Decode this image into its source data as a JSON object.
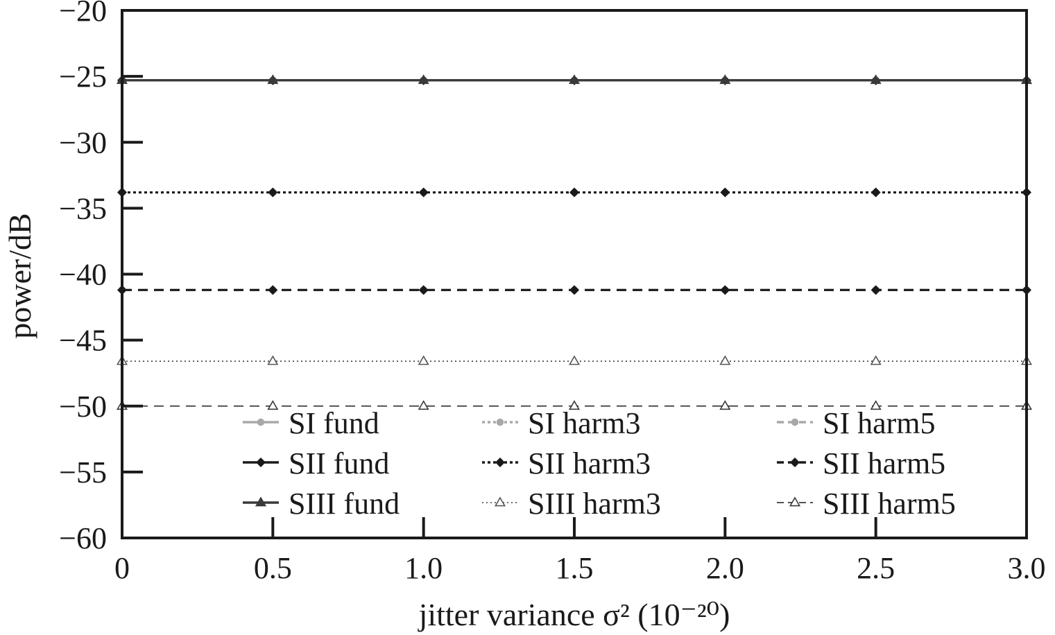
{
  "chart_data": {
    "type": "line",
    "xlabel": "jitter variance σ² (10⁻²⁰)",
    "ylabel": "power/dB",
    "xlim": [
      0,
      3.0
    ],
    "ylim": [
      -60,
      -20
    ],
    "xticks": [
      "0",
      "0.5",
      "1.0",
      "1.5",
      "2.0",
      "2.5",
      "3.0"
    ],
    "yticks": [
      "−20",
      "−25",
      "−30",
      "−35",
      "−40",
      "−45",
      "−50",
      "−55",
      "−60"
    ],
    "grid": false,
    "legend_position": "bottom",
    "x": [
      0,
      0.5,
      1.0,
      1.5,
      2.0,
      2.5,
      3.0
    ],
    "series": [
      {
        "name": "SI fund",
        "values": [
          -25.3,
          -25.3,
          -25.3,
          -25.3,
          -25.3,
          -25.3,
          -25.3
        ],
        "color": "#a8a8a8",
        "style": "solid",
        "marker": "circle"
      },
      {
        "name": "SI harm3",
        "values": [
          -33.8,
          -33.8,
          -33.8,
          -33.8,
          -33.8,
          -33.8,
          -33.8
        ],
        "color": "#a8a8a8",
        "style": "dotted",
        "marker": "circle"
      },
      {
        "name": "SI harm5",
        "values": [
          -41.2,
          -41.2,
          -41.2,
          -41.2,
          -41.2,
          -41.2,
          -41.2
        ],
        "color": "#a8a8a8",
        "style": "dashed",
        "marker": "circle"
      },
      {
        "name": "SII fund",
        "values": [
          -25.3,
          -25.3,
          -25.3,
          -25.3,
          -25.3,
          -25.3,
          -25.3
        ],
        "color": "#1a1a1a",
        "style": "solid",
        "marker": "diamond"
      },
      {
        "name": "SII harm3",
        "values": [
          -33.8,
          -33.8,
          -33.8,
          -33.8,
          -33.8,
          -33.8,
          -33.8
        ],
        "color": "#1a1a1a",
        "style": "dotted",
        "marker": "diamond"
      },
      {
        "name": "SII harm5",
        "values": [
          -41.2,
          -41.2,
          -41.2,
          -41.2,
          -41.2,
          -41.2,
          -41.2
        ],
        "color": "#1a1a1a",
        "style": "dashed",
        "marker": "diamond"
      },
      {
        "name": "SIII fund",
        "values": [
          -25.3,
          -25.3,
          -25.3,
          -25.3,
          -25.3,
          -25.3,
          -25.3
        ],
        "color": "#3a3a3a",
        "style": "solid",
        "marker": "triangle"
      },
      {
        "name": "SIII harm3",
        "values": [
          -46.6,
          -46.6,
          -46.6,
          -46.6,
          -46.6,
          -46.6,
          -46.6
        ],
        "color": "#555555",
        "style": "dotted",
        "marker": "triangle-open"
      },
      {
        "name": "SIII harm5",
        "values": [
          -50.0,
          -50.0,
          -50.0,
          -50.0,
          -50.0,
          -50.0,
          -50.0
        ],
        "color": "#3a3a3a",
        "style": "dashed",
        "marker": "triangle-open"
      }
    ]
  }
}
